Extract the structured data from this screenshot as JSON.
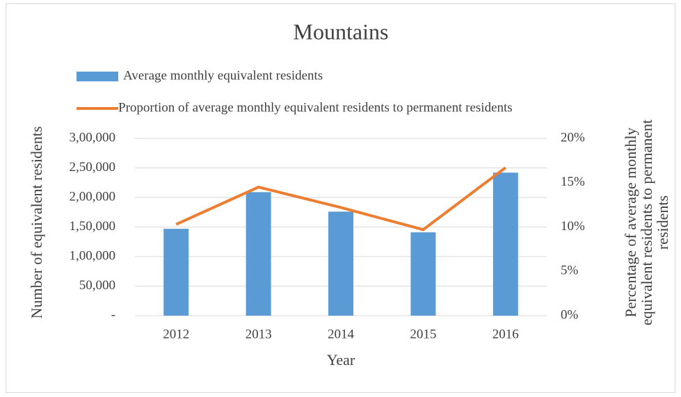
{
  "chart_data": {
    "type": "bar_line",
    "title": "Mountains",
    "xlabel": "Year",
    "ylabel": "Number of equivalent residents",
    "y2label": [
      "Percentage of average monthly",
      "equivalent residents to permanent",
      "residents"
    ],
    "categories": [
      "2012",
      "2013",
      "2014",
      "2015",
      "2016"
    ],
    "series": [
      {
        "name": "Average monthly equivalent residents",
        "type": "bar",
        "color": "#5b9bd5",
        "values": [
          147000,
          209000,
          176000,
          141000,
          242000
        ]
      },
      {
        "name": "Proportion of average monthly equivalent residents to permanent residents",
        "type": "line",
        "axis": "y2",
        "color": "#ed7d31",
        "values": [
          10.3,
          14.5,
          12.2,
          9.7,
          16.7
        ]
      }
    ],
    "ylim": [
      0,
      300000
    ],
    "yticks": [
      {
        "value": 0,
        "label": "-"
      },
      {
        "value": 50000,
        "label": "50,000"
      },
      {
        "value": 100000,
        "label": "1,00,000"
      },
      {
        "value": 150000,
        "label": "1,50,000"
      },
      {
        "value": 200000,
        "label": "2,00,000"
      },
      {
        "value": 250000,
        "label": "2,50,000"
      },
      {
        "value": 300000,
        "label": "3,00,000"
      }
    ],
    "y2lim": [
      0,
      20
    ],
    "y2ticks": [
      {
        "value": 0,
        "label": "0%"
      },
      {
        "value": 5,
        "label": "5%"
      },
      {
        "value": 10,
        "label": "10%"
      },
      {
        "value": 15,
        "label": "15%"
      },
      {
        "value": 20,
        "label": "20%"
      }
    ],
    "grid": true
  }
}
